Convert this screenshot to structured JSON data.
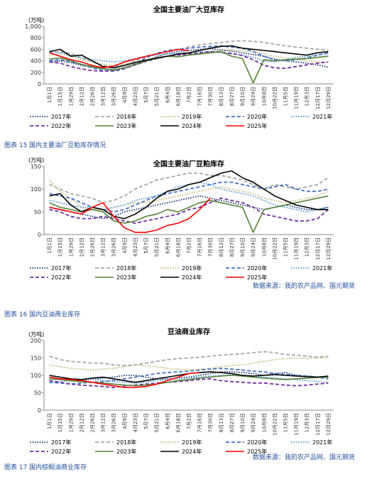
{
  "chart_data": [
    {
      "type": "line",
      "title": "全国主要油厂大豆库存",
      "y_label": "(万吨)",
      "categories": [
        "1月1日",
        "1月15日",
        "1月29日",
        "2月12日",
        "2月26日",
        "3月12日",
        "3月26日",
        "4月9日",
        "4月23日",
        "5月7日",
        "5月21日",
        "6月4日",
        "6月18日",
        "7月2日",
        "7月16日",
        "7月30日",
        "8月13日",
        "8月27日",
        "9月10日",
        "9月24日",
        "10月8日",
        "10月22日",
        "11月5日",
        "11月19日",
        "12月3日",
        "12月17日",
        "12月29日"
      ],
      "ylim": [
        0,
        1000
      ],
      "yticks": [
        0,
        200,
        400,
        600,
        800,
        {
          "value": 1000,
          "label": "1,000"
        }
      ],
      "series": [
        {
          "name": "2017年",
          "color": "#1f3d7a",
          "dash": "dotted",
          "values": [
            380,
            400,
            370,
            320,
            290,
            260,
            250,
            280,
            330,
            400,
            470,
            530,
            560,
            580,
            600,
            610,
            590,
            570,
            540,
            510,
            480,
            430,
            400,
            380,
            360,
            330,
            290
          ]
        },
        {
          "name": "2018年",
          "color": "#a6a6a6",
          "dash": "dashed",
          "values": [
            540,
            560,
            530,
            450,
            380,
            320,
            300,
            330,
            400,
            470,
            520,
            560,
            590,
            640,
            680,
            700,
            720,
            740,
            750,
            740,
            720,
            690,
            660,
            640,
            620,
            600,
            590
          ]
        },
        {
          "name": "2019年",
          "color": "#c4bd76",
          "dash": "dotted",
          "values": [
            500,
            520,
            480,
            420,
            380,
            340,
            320,
            340,
            380,
            420,
            450,
            480,
            500,
            520,
            540,
            560,
            580,
            590,
            580,
            560,
            520,
            480,
            450,
            430,
            400,
            380,
            370
          ]
        },
        {
          "name": "2020年",
          "color": "#4472c4",
          "dash": "dashed",
          "values": [
            400,
            420,
            380,
            340,
            280,
            230,
            220,
            260,
            350,
            450,
            530,
            580,
            600,
            620,
            640,
            650,
            660,
            640,
            620,
            560,
            480,
            420,
            400,
            420,
            450,
            500,
            540
          ]
        },
        {
          "name": "2021年",
          "color": "#5b9bd5",
          "dash": "dotted",
          "values": [
            560,
            540,
            500,
            450,
            420,
            400,
            380,
            400,
            440,
            480,
            500,
            520,
            530,
            540,
            560,
            560,
            540,
            520,
            500,
            460,
            400,
            380,
            420,
            460,
            480,
            500,
            520
          ]
        },
        {
          "name": "2022年",
          "color": "#7030a0",
          "dash": "dashed",
          "values": [
            380,
            360,
            300,
            260,
            230,
            220,
            230,
            270,
            330,
            390,
            440,
            480,
            500,
            520,
            540,
            560,
            550,
            530,
            490,
            420,
            320,
            280,
            270,
            300,
            330,
            360,
            380
          ]
        },
        {
          "name": "2023年",
          "color": "#548235",
          "dash": "solid",
          "values": [
            430,
            450,
            400,
            340,
            300,
            260,
            240,
            280,
            340,
            400,
            440,
            480,
            470,
            500,
            520,
            540,
            560,
            480,
            440,
            20,
            420,
            400,
            420,
            430,
            440,
            460,
            480
          ]
        },
        {
          "name": "2024年",
          "color": "#000000",
          "dash": "solid",
          "values": [
            560,
            600,
            480,
            500,
            400,
            300,
            280,
            320,
            370,
            410,
            450,
            480,
            520,
            540,
            580,
            620,
            650,
            660,
            620,
            600,
            580,
            560,
            540,
            520,
            500,
            540,
            560
          ]
        },
        {
          "name": "2025年",
          "color": "#ff0000",
          "dash": "solid",
          "values": [
            540,
            480,
            420,
            380,
            320,
            280,
            310,
            380,
            430,
            480,
            520,
            560,
            600,
            580,
            null,
            null,
            null,
            null,
            null,
            null,
            null,
            null,
            null,
            null,
            null,
            null,
            null
          ]
        }
      ]
    },
    {
      "type": "line",
      "title": "全国主要油厂豆粕库存",
      "y_label": "(万吨)",
      "source": "数据来源：我的农产品网、国元期货",
      "categories": [
        "1月1日",
        "1月15日",
        "1月29日",
        "2月12日",
        "2月26日",
        "3月12日",
        "3月26日",
        "4月9日",
        "4月23日",
        "5月7日",
        "5月21日",
        "6月4日",
        "6月18日",
        "7月2日",
        "7月16日",
        "7月30日",
        "8月13日",
        "8月27日",
        "9月10日",
        "9月24日",
        "10月8日",
        "10月22日",
        "11月5日",
        "11月19日",
        "12月3日",
        "12月17日",
        "12月29日"
      ],
      "ylim": [
        0,
        150
      ],
      "yticks": [
        0,
        50,
        100,
        150
      ],
      "series": [
        {
          "name": "2017年",
          "color": "#1f3d7a",
          "dash": "dotted",
          "values": [
            60,
            55,
            50,
            45,
            40,
            35,
            40,
            50,
            55,
            60,
            65,
            70,
            75,
            80,
            85,
            80,
            75,
            70,
            65,
            60,
            55,
            60,
            65,
            60,
            55,
            55,
            60
          ]
        },
        {
          "name": "2018年",
          "color": "#a6a6a6",
          "dash": "dashed",
          "values": [
            110,
            100,
            90,
            85,
            80,
            70,
            75,
            85,
            100,
            110,
            120,
            125,
            130,
            135,
            135,
            130,
            130,
            125,
            120,
            110,
            100,
            110,
            105,
            100,
            105,
            110,
            125
          ]
        },
        {
          "name": "2019年",
          "color": "#c4bd76",
          "dash": "dotted",
          "values": [
            120,
            95,
            80,
            60,
            55,
            55,
            60,
            65,
            70,
            70,
            75,
            80,
            85,
            90,
            95,
            100,
            105,
            100,
            95,
            90,
            80,
            75,
            70,
            75,
            80,
            85,
            95
          ]
        },
        {
          "name": "2020年",
          "color": "#4472c4",
          "dash": "dashed",
          "values": [
            90,
            85,
            80,
            70,
            60,
            55,
            50,
            55,
            65,
            75,
            85,
            90,
            95,
            100,
            105,
            110,
            115,
            115,
            110,
            105,
            100,
            105,
            110,
            100,
            95,
            95,
            100
          ]
        },
        {
          "name": "2021年",
          "color": "#5b9bd5",
          "dash": "dotted",
          "values": [
            75,
            70,
            65,
            60,
            60,
            55,
            60,
            65,
            75,
            80,
            85,
            95,
            105,
            110,
            115,
            110,
            100,
            95,
            90,
            85,
            75,
            65,
            60,
            55,
            50,
            55,
            60
          ]
        },
        {
          "name": "2022年",
          "color": "#7030a0",
          "dash": "dashed",
          "values": [
            55,
            50,
            40,
            35,
            35,
            40,
            35,
            30,
            25,
            30,
            35,
            40,
            45,
            55,
            60,
            70,
            80,
            75,
            70,
            60,
            45,
            40,
            35,
            30,
            30,
            35,
            55
          ]
        },
        {
          "name": "2023年",
          "color": "#548235",
          "dash": "solid",
          "values": [
            70,
            60,
            55,
            50,
            55,
            50,
            30,
            25,
            30,
            40,
            45,
            55,
            50,
            60,
            70,
            75,
            70,
            65,
            60,
            5,
            55,
            60,
            65,
            70,
            75,
            80,
            85
          ]
        },
        {
          "name": "2024年",
          "color": "#000000",
          "dash": "solid",
          "values": [
            85,
            90,
            65,
            50,
            60,
            55,
            40,
            35,
            45,
            60,
            80,
            95,
            100,
            110,
            115,
            125,
            135,
            140,
            125,
            115,
            100,
            85,
            75,
            65,
            60,
            55,
            55
          ]
        },
        {
          "name": "2025年",
          "color": "#ff0000",
          "dash": "solid",
          "values": [
            60,
            55,
            50,
            45,
            60,
            70,
            40,
            15,
            5,
            5,
            10,
            20,
            25,
            35,
            55,
            80,
            null,
            null,
            null,
            null,
            null,
            null,
            null,
            null,
            null,
            null,
            null
          ]
        }
      ]
    },
    {
      "type": "line",
      "title": "豆油商业库存",
      "y_label": "(万吨)",
      "source": "数据来源：我的农产品网、国元期货",
      "categories": [
        "1月1日",
        "1月15日",
        "1月29日",
        "2月12日",
        "2月26日",
        "3月12日",
        "3月26日",
        "4月9日",
        "4月23日",
        "5月7日",
        "5月21日",
        "6月4日",
        "6月18日",
        "7月2日",
        "7月16日",
        "7月30日",
        "8月13日",
        "8月27日",
        "9月10日",
        "9月24日",
        "10月8日",
        "10月22日",
        "11月5日",
        "11月19日",
        "12月3日",
        "12月17日",
        "12月29日"
      ],
      "ylim": [
        0,
        200
      ],
      "yticks": [
        0,
        50,
        100,
        150,
        200
      ],
      "series": [
        {
          "name": "2017年",
          "color": "#1f3d7a",
          "dash": "dotted",
          "values": [
            95,
            90,
            88,
            85,
            90,
            92,
            95,
            100,
            100,
            95,
            90,
            90,
            92,
            95,
            100,
            105,
            110,
            110,
            108,
            105,
            100,
            105,
            108,
            100,
            98,
            95,
            95
          ]
        },
        {
          "name": "2018年",
          "color": "#a6a6a6",
          "dash": "dashed",
          "values": [
            155,
            145,
            140,
            138,
            135,
            135,
            130,
            128,
            130,
            135,
            140,
            145,
            148,
            150,
            152,
            155,
            158,
            160,
            162,
            165,
            168,
            165,
            160,
            158,
            155,
            152,
            155
          ]
        },
        {
          "name": "2019年",
          "color": "#c4bd76",
          "dash": "dotted",
          "values": [
            130,
            125,
            120,
            118,
            115,
            118,
            120,
            125,
            130,
            128,
            125,
            120,
            118,
            115,
            118,
            120,
            125,
            128,
            130,
            135,
            140,
            145,
            148,
            150,
            148,
            150,
            150
          ]
        },
        {
          "name": "2020年",
          "color": "#4472c4",
          "dash": "dashed",
          "values": [
            80,
            78,
            75,
            78,
            80,
            82,
            85,
            90,
            95,
            100,
            105,
            108,
            110,
            112,
            115,
            118,
            120,
            118,
            115,
            112,
            110,
            105,
            102,
            100,
            98,
            95,
            90
          ]
        },
        {
          "name": "2021年",
          "color": "#5b9bd5",
          "dash": "dotted",
          "values": [
            80,
            82,
            85,
            88,
            90,
            85,
            82,
            80,
            78,
            80,
            85,
            88,
            90,
            92,
            95,
            98,
            100,
            102,
            100,
            98,
            95,
            92,
            90,
            88,
            85,
            82,
            80
          ]
        },
        {
          "name": "2022年",
          "color": "#7030a0",
          "dash": "dashed",
          "values": [
            85,
            80,
            75,
            72,
            70,
            68,
            65,
            70,
            72,
            75,
            78,
            80,
            82,
            85,
            88,
            90,
            85,
            82,
            80,
            78,
            78,
            75,
            72,
            70,
            72,
            75,
            78
          ]
        },
        {
          "name": "2023年",
          "color": "#548235",
          "dash": "solid",
          "values": [
            90,
            88,
            85,
            82,
            80,
            78,
            75,
            72,
            70,
            72,
            75,
            80,
            85,
            88,
            92,
            95,
            98,
            100,
            98,
            95,
            92,
            90,
            88,
            90,
            92,
            94,
            95
          ]
        },
        {
          "name": "2024年",
          "color": "#000000",
          "dash": "solid",
          "values": [
            100,
            95,
            90,
            88,
            92,
            95,
            90,
            85,
            80,
            85,
            90,
            95,
            100,
            105,
            108,
            110,
            108,
            105,
            100,
            98,
            100,
            102,
            100,
            98,
            96,
            95,
            98
          ]
        },
        {
          "name": "2025年",
          "color": "#ff0000",
          "dash": "solid",
          "values": [
            95,
            90,
            88,
            85,
            80,
            75,
            70,
            65,
            65,
            68,
            75,
            85,
            95,
            105,
            108,
            null,
            null,
            null,
            null,
            null,
            null,
            null,
            null,
            null,
            null,
            null,
            null
          ]
        }
      ]
    }
  ],
  "figure_captions": [
    "图表 15 国内主要油厂豆粕库存情况",
    "图表 16 国内豆油商业库存",
    "图表 17 国内棕榈油商业库存"
  ]
}
